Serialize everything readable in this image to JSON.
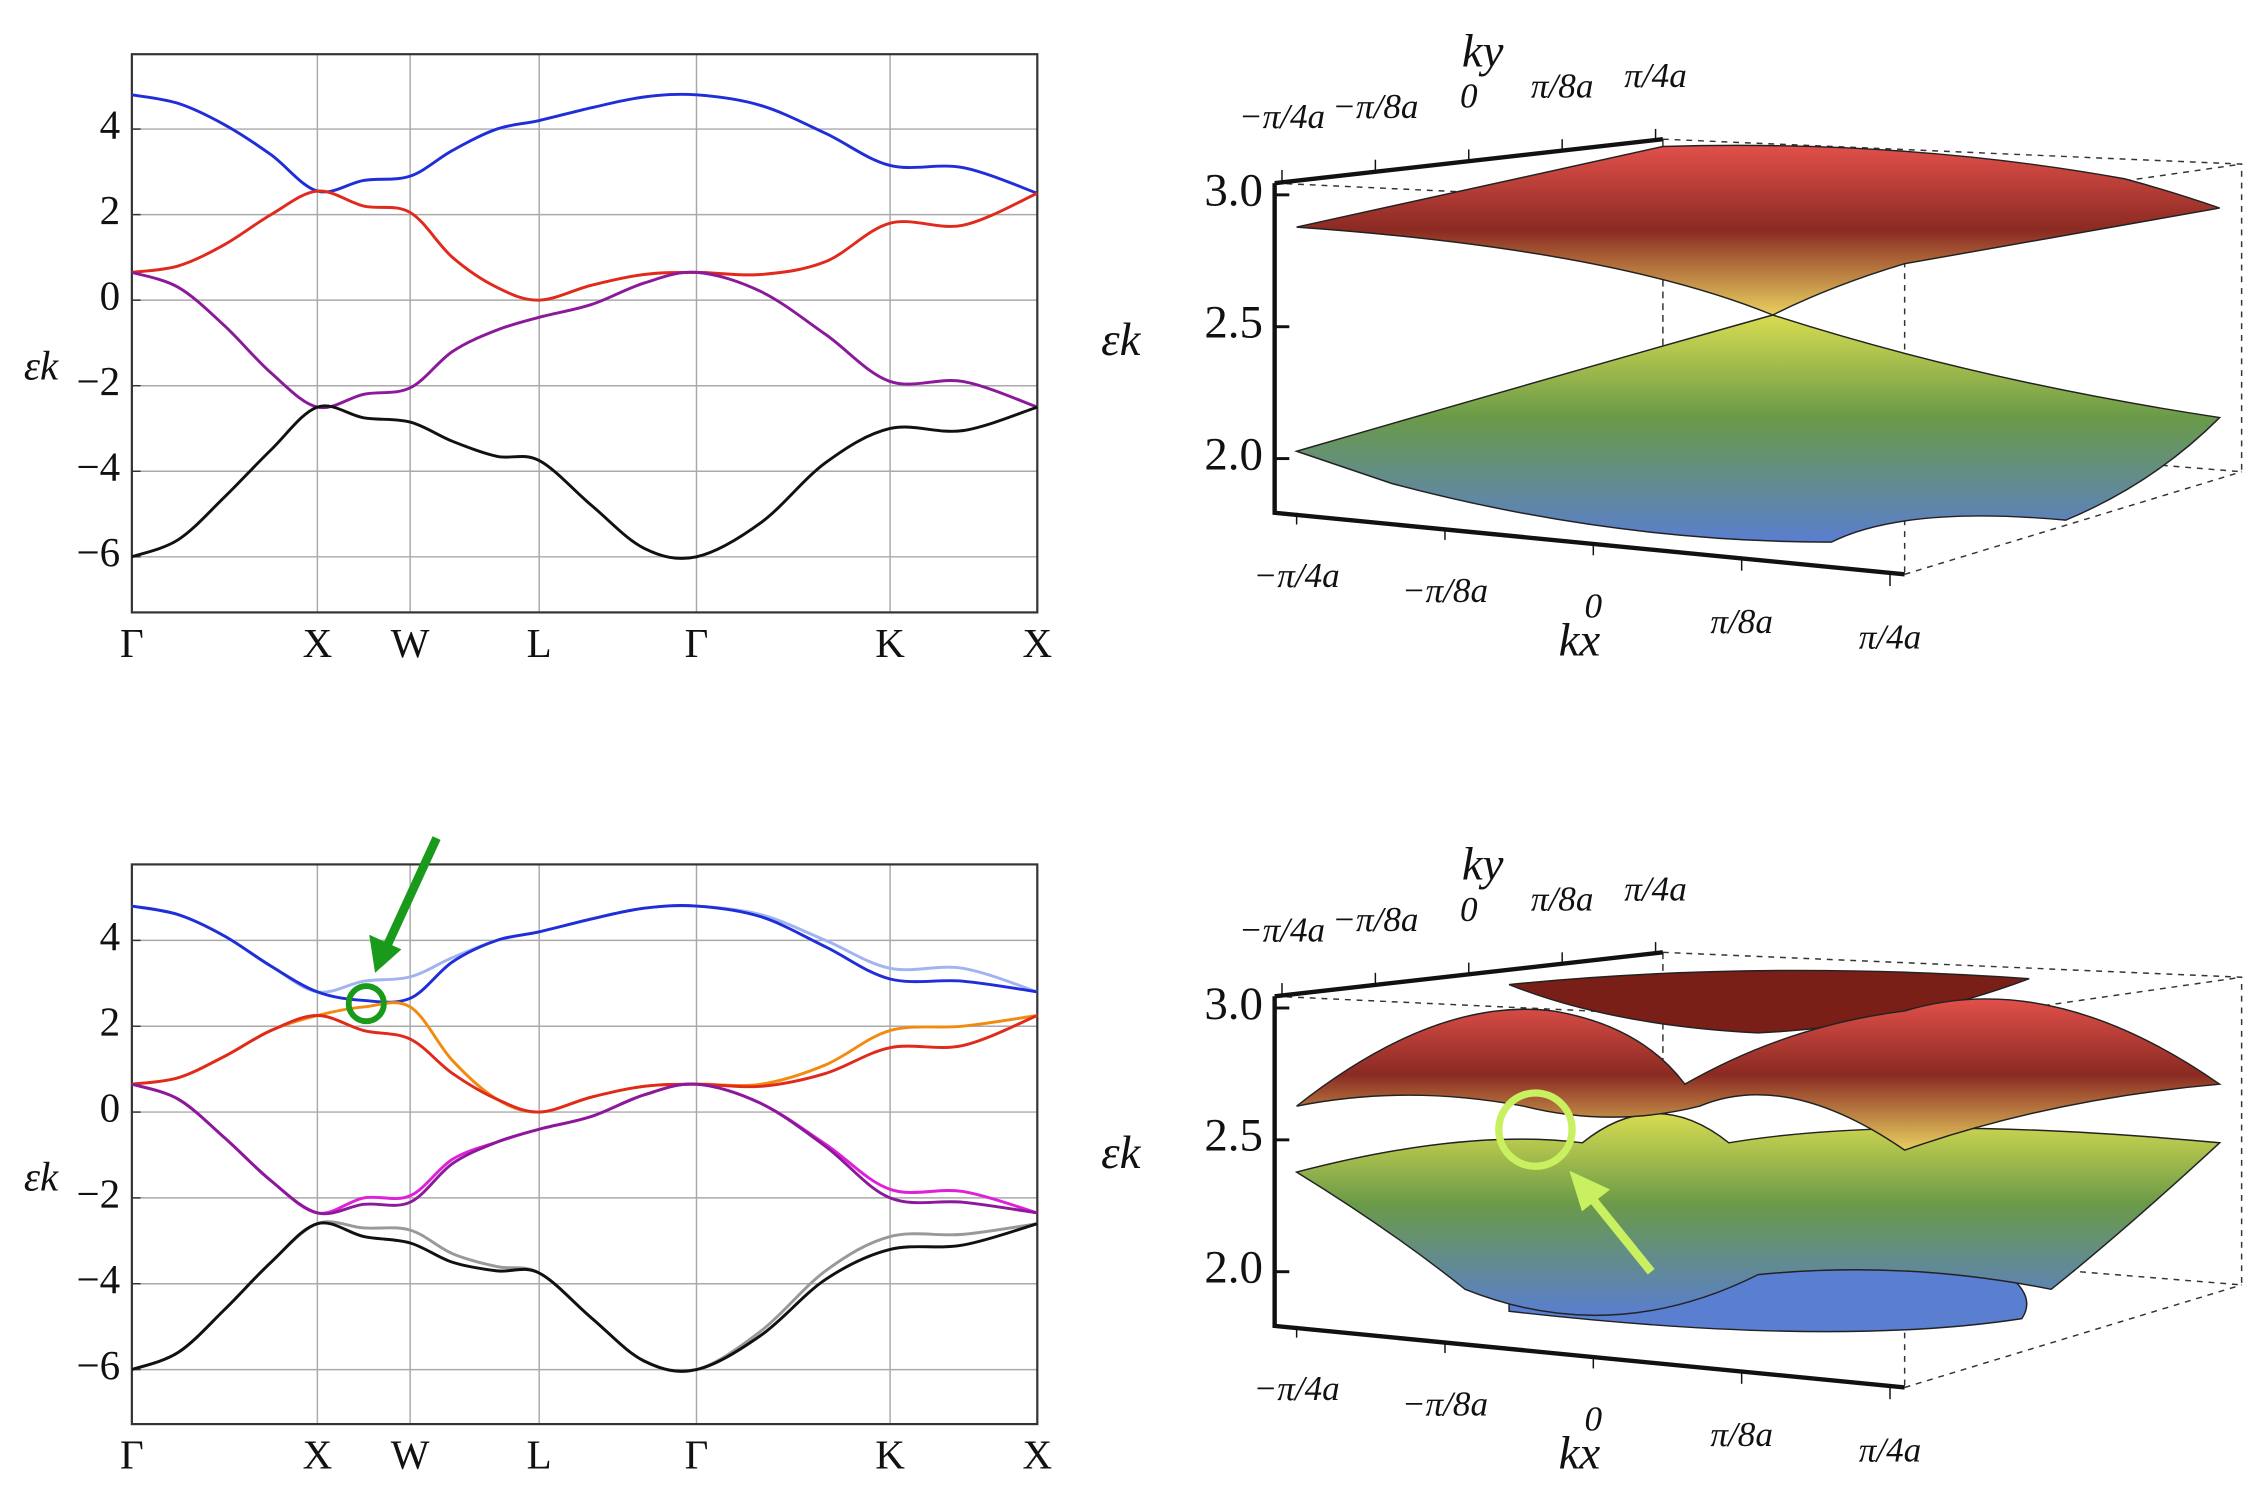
{
  "chart_data": [
    {
      "type": "line",
      "ylabel": "εk",
      "grid": true,
      "x": [
        0,
        0.23,
        0.46,
        0.69,
        0.92,
        1.15,
        1.38,
        1.59,
        1.81,
        2.02,
        2.28,
        2.54,
        2.8,
        3.12,
        3.44,
        3.76,
        4.12,
        4.49
      ],
      "xlim": [
        0,
        4.49
      ],
      "xticks": [
        {
          "value": 0,
          "label": "Γ"
        },
        {
          "value": 0.92,
          "label": "X"
        },
        {
          "value": 1.38,
          "label": "W"
        },
        {
          "value": 2.02,
          "label": "L"
        },
        {
          "value": 2.8,
          "label": "Γ"
        },
        {
          "value": 3.76,
          "label": "K"
        },
        {
          "value": 4.49,
          "label": "X"
        }
      ],
      "ylim": [
        -7.3,
        5.75
      ],
      "yticks": [
        4,
        2,
        0,
        {
          "value": -2,
          "label": "−2"
        },
        {
          "value": -4,
          "label": "−4"
        },
        {
          "value": -6,
          "label": "−6"
        }
      ],
      "series": [
        {
          "color": "#1f2ed8",
          "values": [
            4.8,
            4.6,
            4.1,
            3.4,
            2.55,
            2.8,
            2.9,
            3.5,
            4.0,
            4.2,
            4.5,
            4.75,
            4.8,
            4.55,
            3.9,
            3.15,
            3.1,
            2.5
          ]
        },
        {
          "color": "#e02a1c",
          "values": [
            0.65,
            0.8,
            1.3,
            2.0,
            2.55,
            2.2,
            2.05,
            1.0,
            0.3,
            0.0,
            0.35,
            0.6,
            0.65,
            0.6,
            0.9,
            1.8,
            1.75,
            2.5
          ]
        },
        {
          "color": "#8a1a9a",
          "values": [
            0.65,
            0.3,
            -0.6,
            -1.7,
            -2.5,
            -2.2,
            -2.05,
            -1.2,
            -0.7,
            -0.4,
            -0.1,
            0.4,
            0.65,
            0.2,
            -0.8,
            -1.9,
            -1.9,
            -2.5
          ]
        },
        {
          "color": "#111111",
          "values": [
            -6.0,
            -5.6,
            -4.6,
            -3.5,
            -2.5,
            -2.75,
            -2.85,
            -3.3,
            -3.65,
            -3.75,
            -4.8,
            -5.8,
            -6.0,
            -5.2,
            -3.8,
            -3.0,
            -3.05,
            -2.5
          ]
        }
      ]
    },
    {
      "type": "surface3d",
      "xlabel": "kx",
      "ylabel": "ky",
      "zlabel": "εk",
      "xlim": [
        -0.25,
        0.25
      ],
      "ylim": [
        -0.25,
        0.25
      ],
      "zlim": [
        1.8,
        3.2
      ],
      "xticks": [
        {
          "value": -0.25,
          "label": "−π/4a"
        },
        {
          "value": -0.125,
          "label": "−π/8a"
        },
        0,
        {
          "value": 0.125,
          "label": "π/8a"
        },
        {
          "value": 0.25,
          "label": "π/4a"
        }
      ],
      "yticks": [
        {
          "value": -0.25,
          "label": "−π/4a"
        },
        {
          "value": -0.125,
          "label": "−π/8a"
        },
        0,
        {
          "value": 0.125,
          "label": "π/8a"
        },
        {
          "value": 0.25,
          "label": "π/4a"
        }
      ],
      "zticks": [
        {
          "value": 3,
          "label": "3.0"
        },
        2.5,
        {
          "value": 2,
          "label": "2.0"
        }
      ]
    },
    {
      "type": "line",
      "ylabel": "εk",
      "grid": true,
      "x": [
        0,
        0.23,
        0.46,
        0.69,
        0.92,
        1.15,
        1.38,
        1.59,
        1.81,
        2.02,
        2.28,
        2.54,
        2.8,
        3.12,
        3.44,
        3.76,
        4.12,
        4.49
      ],
      "xlim": [
        0,
        4.49
      ],
      "xticks": [
        {
          "value": 0,
          "label": "Γ"
        },
        {
          "value": 0.92,
          "label": "X"
        },
        {
          "value": 1.38,
          "label": "W"
        },
        {
          "value": 2.02,
          "label": "L"
        },
        {
          "value": 2.8,
          "label": "Γ"
        },
        {
          "value": 3.76,
          "label": "K"
        },
        {
          "value": 4.49,
          "label": "X"
        }
      ],
      "ylim": [
        -7.27,
        5.77
      ],
      "yticks": [
        4,
        2,
        0,
        {
          "value": -2,
          "label": "−2"
        },
        {
          "value": -4,
          "label": "−4"
        },
        {
          "value": -6,
          "label": "−6"
        }
      ],
      "series": [
        {
          "color": "#9fb4f0",
          "values": [
            4.8,
            4.6,
            4.1,
            3.4,
            2.8,
            3.05,
            3.15,
            3.6,
            4.0,
            4.2,
            4.5,
            4.75,
            4.8,
            4.6,
            4.0,
            3.35,
            3.35,
            2.8
          ]
        },
        {
          "color": "#1f2ed8",
          "values": [
            4.8,
            4.6,
            4.1,
            3.4,
            2.8,
            2.6,
            2.65,
            3.5,
            4.0,
            4.2,
            4.5,
            4.75,
            4.8,
            4.55,
            3.85,
            3.1,
            3.05,
            2.8
          ]
        },
        {
          "color": "#f28a10",
          "values": [
            0.65,
            0.8,
            1.3,
            1.9,
            2.25,
            2.45,
            2.45,
            1.2,
            0.3,
            0.0,
            0.35,
            0.6,
            0.65,
            0.65,
            1.1,
            1.9,
            2.0,
            2.25
          ]
        },
        {
          "color": "#e02a1c",
          "values": [
            0.65,
            0.8,
            1.3,
            1.9,
            2.25,
            1.9,
            1.7,
            0.9,
            0.3,
            0.0,
            0.35,
            0.6,
            0.65,
            0.6,
            0.9,
            1.5,
            1.55,
            2.25
          ]
        },
        {
          "color": "#e020d8",
          "values": [
            0.65,
            0.3,
            -0.6,
            -1.6,
            -2.35,
            -2.0,
            -1.95,
            -1.1,
            -0.7,
            -0.4,
            -0.1,
            0.4,
            0.65,
            0.2,
            -0.75,
            -1.8,
            -1.85,
            -2.35
          ]
        },
        {
          "color": "#8a1a9a",
          "values": [
            0.65,
            0.3,
            -0.6,
            -1.6,
            -2.35,
            -2.15,
            -2.1,
            -1.2,
            -0.7,
            -0.4,
            -0.1,
            0.4,
            0.65,
            0.2,
            -0.8,
            -2.0,
            -2.1,
            -2.35
          ]
        },
        {
          "color": "#999999",
          "values": [
            -6.0,
            -5.6,
            -4.6,
            -3.5,
            -2.6,
            -2.7,
            -2.75,
            -3.3,
            -3.6,
            -3.75,
            -4.8,
            -5.8,
            -6.0,
            -5.1,
            -3.7,
            -2.9,
            -2.85,
            -2.6
          ]
        },
        {
          "color": "#111111",
          "values": [
            -6.0,
            -5.6,
            -4.6,
            -3.5,
            -2.6,
            -2.9,
            -3.05,
            -3.5,
            -3.7,
            -3.75,
            -4.8,
            -5.8,
            -6.0,
            -5.2,
            -3.9,
            -3.2,
            -3.1,
            -2.6
          ]
        }
      ]
    },
    {
      "type": "surface3d",
      "xlabel": "kx",
      "ylabel": "ky",
      "zlabel": "εk",
      "xlim": [
        -0.25,
        0.25
      ],
      "ylim": [
        -0.25,
        0.25
      ],
      "zlim": [
        1.8,
        3.2
      ],
      "xticks": [
        {
          "value": -0.25,
          "label": "−π/4a"
        },
        {
          "value": -0.125,
          "label": "−π/8a"
        },
        0,
        {
          "value": 0.125,
          "label": "π/8a"
        },
        {
          "value": 0.25,
          "label": "π/4a"
        }
      ],
      "yticks": [
        {
          "value": -0.25,
          "label": "−π/4a"
        },
        {
          "value": -0.125,
          "label": "−π/8a"
        },
        0,
        {
          "value": 0.125,
          "label": "π/8a"
        },
        {
          "value": 0.25,
          "label": "π/4a"
        }
      ],
      "zticks": [
        {
          "value": 3,
          "label": "3.0"
        },
        2.5,
        {
          "value": 2,
          "label": "2.0"
        }
      ]
    }
  ]
}
